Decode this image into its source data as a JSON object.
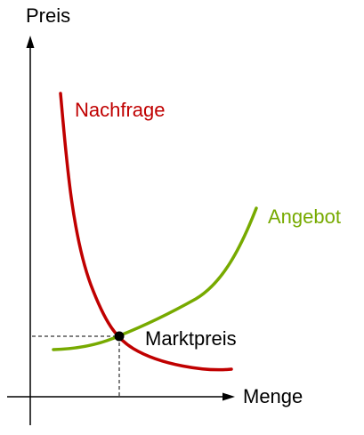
{
  "axes": {
    "y_label": "Preis",
    "x_label": "Menge"
  },
  "curves": {
    "demand": {
      "label": "Nachfrage",
      "color": "#c00000"
    },
    "supply": {
      "label": "Angebot",
      "color": "#77aa00"
    }
  },
  "equilibrium": {
    "label": "Marktpreis",
    "dot_color": "#000000"
  },
  "colors": {
    "axis": "#000000",
    "text": "#000000",
    "guide": "#000000"
  }
}
